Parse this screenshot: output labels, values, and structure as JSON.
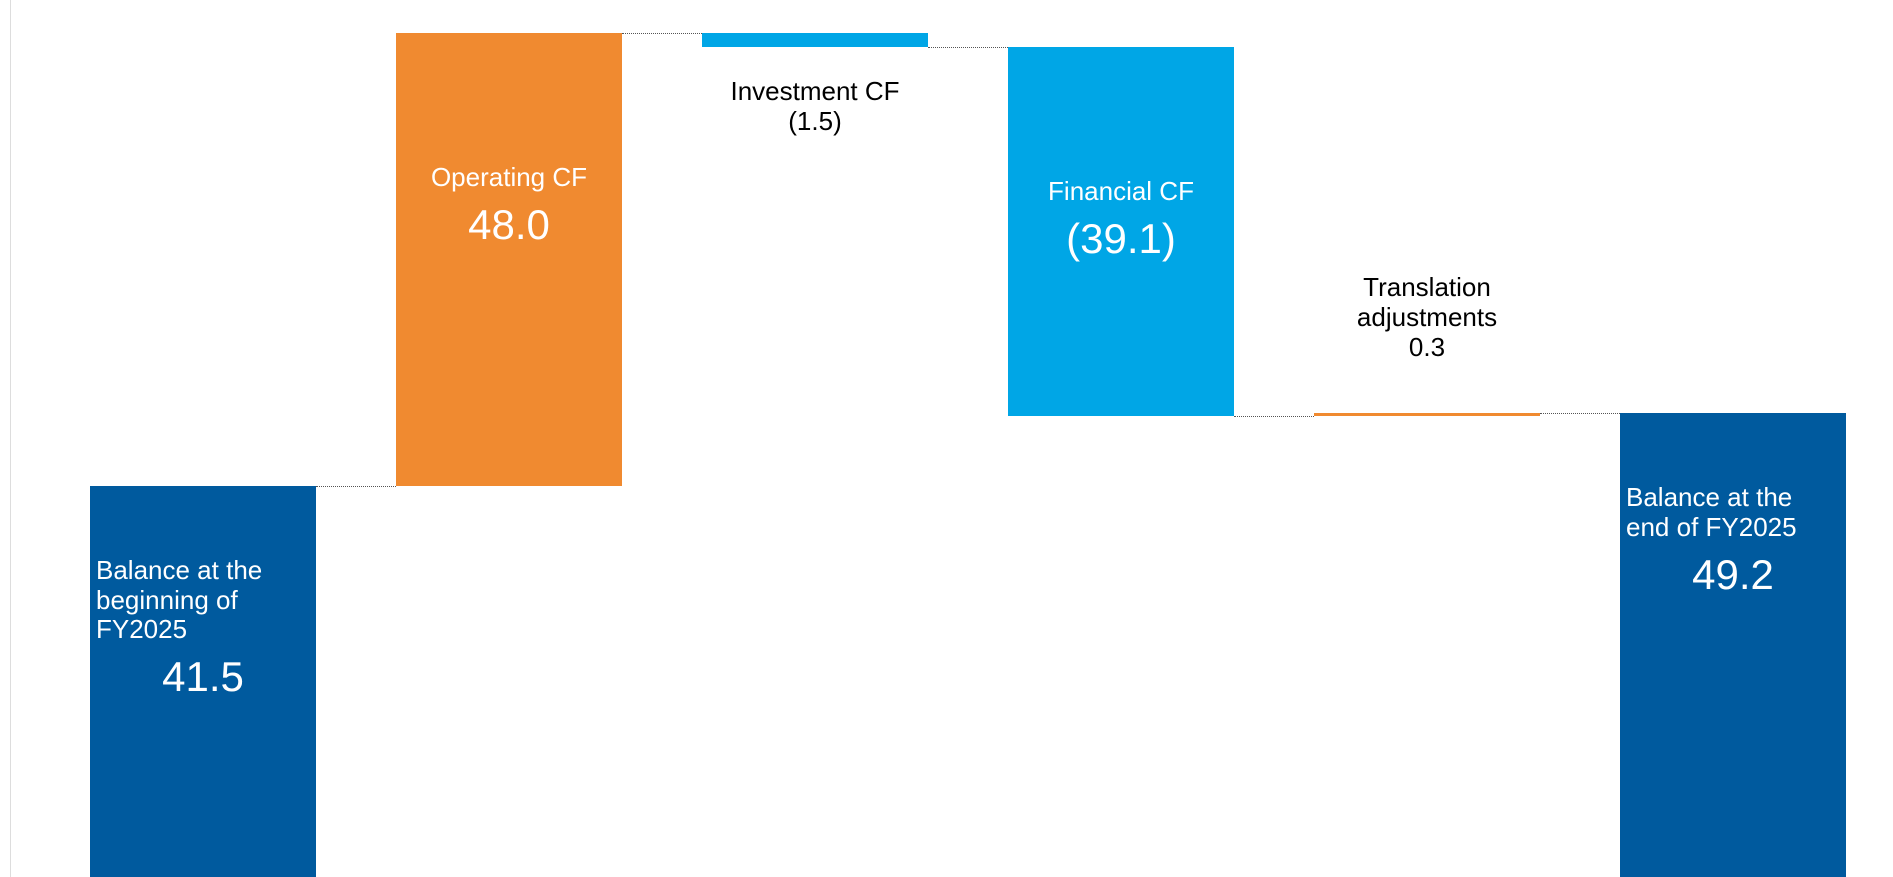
{
  "chart_data": {
    "type": "waterfall",
    "categories": [
      "Balance at the beginning of FY2025",
      "Operating CF",
      "Investment CF",
      "Financial CF",
      "Translation adjustments",
      "Balance at the end of FY2025"
    ],
    "values": [
      41.5,
      48.0,
      -1.5,
      -39.1,
      0.3,
      49.2
    ],
    "value_labels": [
      "41.5",
      "48.0",
      "(1.5)",
      "(39.1)",
      "0.3",
      "49.2"
    ],
    "kinds": [
      "total",
      "change",
      "change",
      "change",
      "change",
      "total"
    ],
    "colors": [
      "#005a9e",
      "#f08a30",
      "#00a6e6",
      "#00a6e6",
      "#f08a30",
      "#005a9e"
    ]
  }
}
